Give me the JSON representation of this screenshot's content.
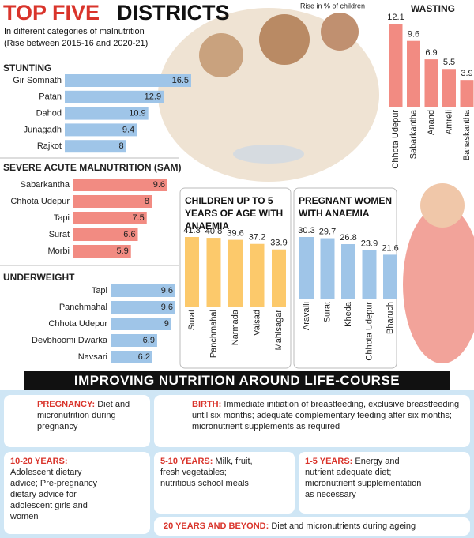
{
  "header": {
    "title_highlight": "TOP FIVE",
    "title_rest": "DISTRICTS",
    "subtitle": "In different categories of malnutrition (Rise between 2015-16 and 2020-21)",
    "note": "Rise in % of children"
  },
  "chart_data": [
    {
      "type": "bar",
      "orientation": "horizontal",
      "title": "STUNTING",
      "categories": [
        "Gir Somnath",
        "Patan",
        "Dahod",
        "Junagadh",
        "Rajkot"
      ],
      "values": [
        16.5,
        12.9,
        10.9,
        9.4,
        8
      ],
      "color": "#9fc5e8"
    },
    {
      "type": "bar",
      "orientation": "horizontal",
      "title": "SEVERE ACUTE MALNUTRITION (SAM)",
      "categories": [
        "Sabarkantha",
        "Chhota Udepur",
        "Tapi",
        "Surat",
        "Morbi"
      ],
      "values": [
        9.6,
        8,
        7.5,
        6.6,
        5.9
      ],
      "color": "#f28b82"
    },
    {
      "type": "bar",
      "orientation": "horizontal",
      "title": "UNDERWEIGHT",
      "categories": [
        "Tapi",
        "Panchmahal",
        "Chhota Udepur",
        "Devbhoomi Dwarka",
        "Navsari"
      ],
      "values": [
        9.6,
        9.6,
        9,
        6.9,
        6.2
      ],
      "color": "#9fc5e8"
    },
    {
      "type": "bar",
      "orientation": "vertical",
      "title": "WASTING",
      "categories": [
        "Chhota Udepur",
        "Sabarkantha",
        "Anand",
        "Amreli",
        "Banaskantha"
      ],
      "values": [
        12.1,
        9.6,
        6.9,
        5.5,
        3.9
      ],
      "color": "#f28b82"
    },
    {
      "type": "bar",
      "orientation": "vertical",
      "title": "CHILDREN UP TO 5 YEARS OF AGE WITH ANAEMIA",
      "categories": [
        "Surat",
        "Panchmahal",
        "Narmada",
        "Valsad",
        "Mahisagar"
      ],
      "values": [
        41.3,
        40.8,
        39.6,
        37.2,
        33.9
      ],
      "color": "#fcc96b"
    },
    {
      "type": "bar",
      "orientation": "vertical",
      "title": "PREGNANT WOMEN WITH ANAEMIA",
      "categories": [
        "Aravalli",
        "Surat",
        "Kheda",
        "Chhota Udepur",
        "Bharuch"
      ],
      "values": [
        30.3,
        29.7,
        26.8,
        23.9,
        21.6
      ],
      "color": "#9fc5e8"
    }
  ],
  "section_title": "IMPROVING NUTRITION AROUND LIFE-COURSE",
  "stages": [
    {
      "label": "PREGNANCY:",
      "text": "Diet and micronutrition during pregnancy"
    },
    {
      "label": "BIRTH:",
      "text": "Immediate initiation of breastfeeding, exclusive breastfeeding until six months; adequate complementary feeding after six months; micronutrient supplements as required"
    },
    {
      "label": "10-20 YEARS:",
      "text": "Adolescent dietary advice; Pre-pregnancy dietary advice for adolescent girls and women"
    },
    {
      "label": "5-10 YEARS:",
      "text": "Milk, fruit, fresh vegetables; nutritious school meals"
    },
    {
      "label": "1-5 YEARS:",
      "text": "Energy and nutrient adequate diet; micronutrient supplementation as necessary"
    },
    {
      "label": "20 YEARS AND BEYOND:",
      "text": "Diet and micronutrients during ageing"
    }
  ]
}
